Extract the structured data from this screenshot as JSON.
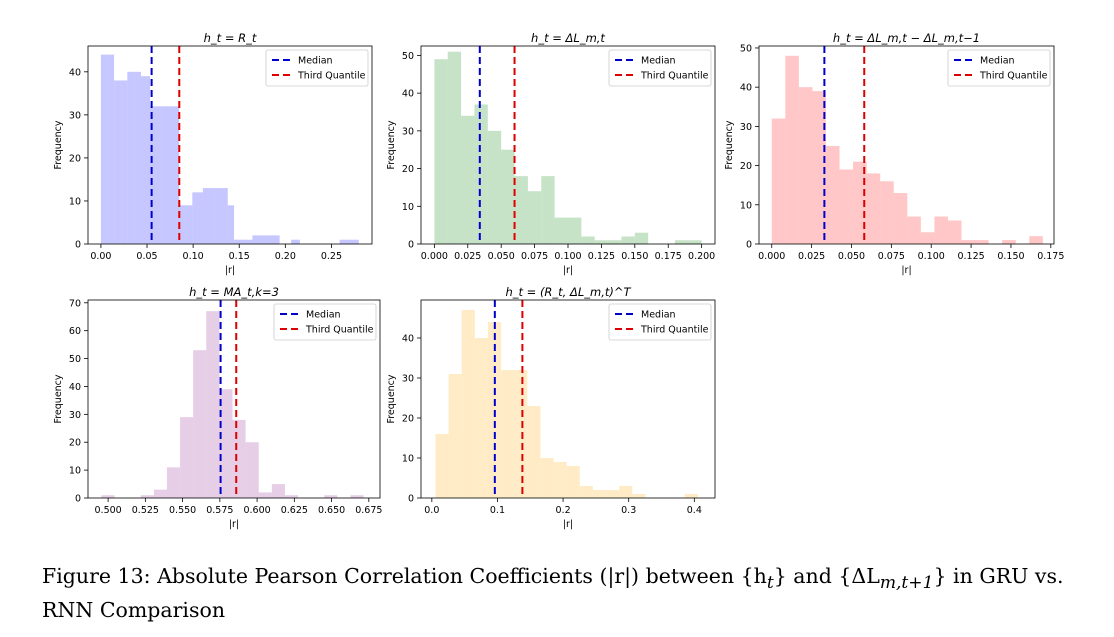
{
  "figure": {
    "caption_label": "Figure 13:",
    "caption_text": "Absolute Pearson Correlation Coefficients (|r|) between {h",
    "caption_text2": "} and {ΔL",
    "caption_text3": "} in GRU vs. RNN Comparison",
    "caption_sub1": "t",
    "caption_sub2": "m,t+1"
  },
  "chart_data": [
    {
      "type": "histogram",
      "title": "h_t = R_t",
      "xlabel": "|r|",
      "ylabel": "Frequency",
      "color": "#9999ff",
      "xlim": [
        -0.014,
        0.294
      ],
      "ylim": [
        0,
        46
      ],
      "xticks": [
        0.0,
        0.05,
        0.1,
        0.15,
        0.2,
        0.25
      ],
      "xtick_labels": [
        "0.00",
        "0.05",
        "0.10",
        "0.15",
        "0.20",
        "0.25"
      ],
      "yticks": [
        0,
        10,
        20,
        30,
        40
      ],
      "bin_edges": [
        0.0,
        0.0075,
        0.0143,
        0.0219,
        0.0286,
        0.0363,
        0.0434,
        0.0533,
        0.0653,
        0.0744,
        0.0848,
        0.0913,
        0.0991,
        0.1106,
        0.1228,
        0.1376,
        0.1444,
        0.1557,
        0.1643,
        0.1797,
        0.1938,
        0.2063,
        0.2158,
        0.2268,
        0.2401,
        0.2589,
        0.2683,
        0.2797
      ],
      "counts": [
        44,
        44,
        38,
        38,
        40,
        40,
        39,
        32,
        32,
        32,
        9,
        9,
        12,
        13,
        13,
        9,
        1,
        1,
        2,
        2,
        0,
        1,
        0,
        0,
        0,
        1,
        1
      ],
      "median": 0.055,
      "third_quantile": 0.085,
      "legend": [
        "Median",
        "Third Quantile"
      ]
    },
    {
      "type": "histogram",
      "title": "h_t = ΔL_m,t",
      "xlabel": "|r|",
      "ylabel": "Frequency",
      "color": "#99cc99",
      "xlim": [
        -0.01,
        0.21
      ],
      "ylim": [
        0,
        52.5
      ],
      "xticks": [
        0.0,
        0.025,
        0.05,
        0.075,
        0.1,
        0.125,
        0.15,
        0.175,
        0.2
      ],
      "xtick_labels": [
        "0.000",
        "0.025",
        "0.050",
        "0.075",
        "0.100",
        "0.125",
        "0.150",
        "0.175",
        "0.200"
      ],
      "yticks": [
        0,
        10,
        20,
        30,
        40,
        50
      ],
      "bin_edges": [
        0.0,
        0.01,
        0.02,
        0.03,
        0.04,
        0.05,
        0.06,
        0.07,
        0.08,
        0.09,
        0.1,
        0.11,
        0.12,
        0.13,
        0.14,
        0.15,
        0.16,
        0.17,
        0.18,
        0.19,
        0.2
      ],
      "counts": [
        49,
        51,
        34,
        37,
        30,
        25,
        18,
        14,
        18,
        7,
        7,
        2,
        1,
        1,
        2,
        3,
        0,
        0,
        1,
        1
      ],
      "median": 0.034,
      "third_quantile": 0.06,
      "legend": [
        "Median",
        "Third Quantile"
      ]
    },
    {
      "type": "histogram",
      "title": "h_t = ΔL_m,t − ΔL_m,t−1",
      "xlabel": "|r|",
      "ylabel": "Frequency",
      "color": "#ff9999",
      "xlim": [
        -0.008,
        0.177
      ],
      "ylim": [
        0,
        50.5
      ],
      "xticks": [
        0.0,
        0.025,
        0.05,
        0.075,
        0.1,
        0.125,
        0.15,
        0.175
      ],
      "xtick_labels": [
        "0.000",
        "0.025",
        "0.050",
        "0.075",
        "0.100",
        "0.125",
        "0.150",
        "0.175"
      ],
      "yticks": [
        0,
        10,
        20,
        30,
        40,
        50
      ],
      "bin_edges": [
        0.0,
        0.0085,
        0.017,
        0.0255,
        0.034,
        0.0425,
        0.051,
        0.0595,
        0.068,
        0.0765,
        0.085,
        0.0935,
        0.102,
        0.1105,
        0.119,
        0.1275,
        0.136,
        0.1445,
        0.153,
        0.1615,
        0.17
      ],
      "counts": [
        32,
        48,
        40,
        39,
        25,
        19,
        21,
        18,
        16,
        13,
        7,
        3,
        7,
        6,
        1,
        1,
        0,
        1,
        0,
        2
      ],
      "median": 0.033,
      "third_quantile": 0.058,
      "legend": [
        "Median",
        "Third Quantile"
      ]
    },
    {
      "type": "histogram",
      "title": "h_t = MA_t,k=3",
      "xlabel": "|r|",
      "ylabel": "Frequency",
      "color": "#d4a5d4",
      "xlim": [
        0.4865,
        0.6825
      ],
      "ylim": [
        0,
        71
      ],
      "xticks": [
        0.5,
        0.525,
        0.55,
        0.575,
        0.6,
        0.625,
        0.65,
        0.675
      ],
      "xtick_labels": [
        "0.500",
        "0.525",
        "0.550",
        "0.575",
        "0.600",
        "0.625",
        "0.650",
        "0.675"
      ],
      "yticks": [
        0,
        10,
        20,
        30,
        40,
        50,
        60,
        70
      ],
      "bin_edges": [
        0.4955,
        0.5043,
        0.5131,
        0.5219,
        0.5307,
        0.5395,
        0.5483,
        0.5571,
        0.5659,
        0.5747,
        0.5835,
        0.5923,
        0.6011,
        0.6099,
        0.6187,
        0.6275,
        0.6363,
        0.6451,
        0.6539,
        0.6627,
        0.6715
      ],
      "counts": [
        1,
        0,
        0,
        1,
        3,
        11,
        29,
        53,
        67,
        39,
        28,
        20,
        2,
        5,
        1,
        0,
        0,
        1,
        0,
        1
      ],
      "median": 0.5755,
      "third_quantile": 0.586,
      "legend": [
        "Median",
        "Third Quantile"
      ]
    },
    {
      "type": "histogram",
      "title": "h_t = (R_t, ΔL_m,t)^T",
      "xlabel": "|r|",
      "ylabel": "Frequency",
      "color": "#ffdd99",
      "xlim": [
        -0.0165,
        0.4315
      ],
      "ylim": [
        0,
        49.5
      ],
      "xticks": [
        0.0,
        0.1,
        0.2,
        0.3,
        0.4
      ],
      "xtick_labels": [
        "0.0",
        "0.1",
        "0.2",
        "0.3",
        "0.4"
      ],
      "yticks": [
        0,
        10,
        20,
        30,
        40
      ],
      "bin_edges": [
        0.0055,
        0.0255,
        0.0455,
        0.0655,
        0.0855,
        0.1055,
        0.1255,
        0.1455,
        0.1655,
        0.1855,
        0.2055,
        0.2255,
        0.2455,
        0.2655,
        0.2855,
        0.3055,
        0.3255,
        0.3455,
        0.3655,
        0.3855,
        0.4055
      ],
      "counts": [
        16,
        31,
        47,
        40,
        44,
        32,
        32,
        23,
        10,
        9,
        8,
        3,
        2,
        2,
        3,
        1,
        0,
        0,
        0,
        1
      ],
      "median": 0.096,
      "third_quantile": 0.138,
      "legend": [
        "Median",
        "Third Quantile"
      ]
    }
  ]
}
